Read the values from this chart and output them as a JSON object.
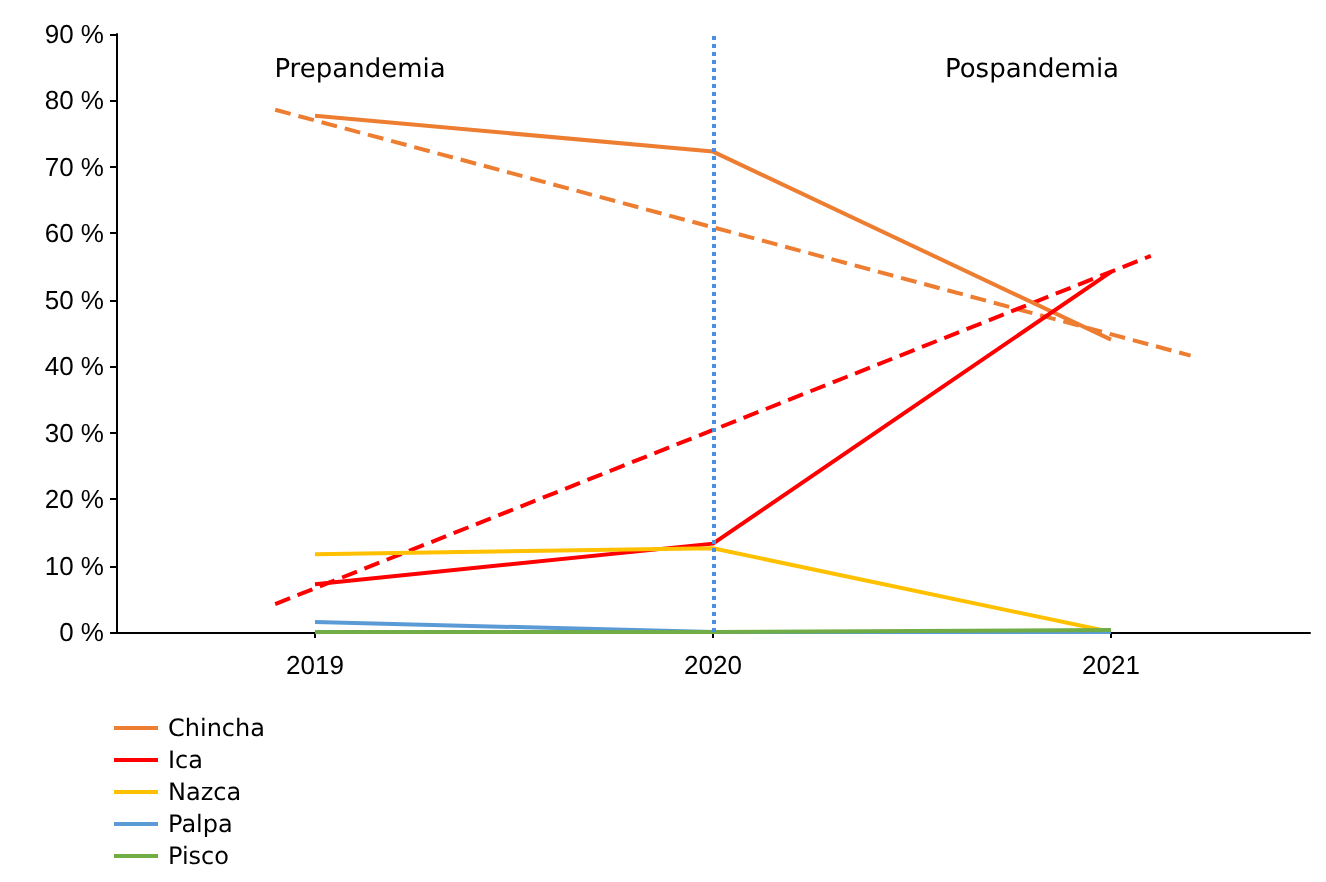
{
  "chart_data": {
    "type": "line",
    "x": [
      2019,
      2020,
      2021
    ],
    "xlim": [
      2018.5,
      2021.5
    ],
    "xticks": [
      2019,
      2020,
      2021
    ],
    "ylim": [
      0,
      90
    ],
    "yticks": [
      {
        "value": 0,
        "label": "0 %"
      },
      {
        "value": 10,
        "label": "10 %"
      },
      {
        "value": 20,
        "label": "20 %"
      },
      {
        "value": 30,
        "label": "30 %"
      },
      {
        "value": 40,
        "label": "40 %"
      },
      {
        "value": 50,
        "label": "50 %"
      },
      {
        "value": 60,
        "label": "60 %"
      },
      {
        "value": 70,
        "label": "70 %"
      },
      {
        "value": 80,
        "label": "80 %"
      },
      {
        "value": 90,
        "label": "90 %"
      }
    ],
    "series": [
      {
        "name": "Chincha",
        "color": "#ed7d31",
        "values": [
          77.7,
          72.3,
          44
        ]
      },
      {
        "name": "Ica",
        "color": "#ff0000",
        "values": [
          7.2,
          13.3,
          54.2
        ]
      },
      {
        "name": "Nazca",
        "color": "#ffc000",
        "values": [
          11.7,
          12.6,
          0
        ]
      },
      {
        "name": "Palpa",
        "color": "#5b9bd5",
        "values": [
          1.5,
          0,
          0
        ]
      },
      {
        "name": "Pisco",
        "color": "#70ad47",
        "values": [
          0,
          0,
          0.3
        ]
      },
      {
        "color": "#ed7d31",
        "x": [
          2018.9,
          2021.2
        ],
        "values": [
          78.6,
          41.6
        ],
        "line_style": "dashed"
      },
      {
        "color": "#ff0000",
        "x": [
          2018.9,
          2021.1
        ],
        "values": [
          4.2,
          56.6
        ],
        "line_style": "dashed"
      }
    ],
    "ref_lines": [
      {
        "axis": "x",
        "value": 2020,
        "color": "#4a90e2",
        "line_style": "dotted"
      }
    ],
    "annotations": [
      "Prepandemia",
      "Pospandemia"
    ],
    "legend": "bottom left",
    "grid": false,
    "marker": "none",
    "line_style": "solid"
  }
}
